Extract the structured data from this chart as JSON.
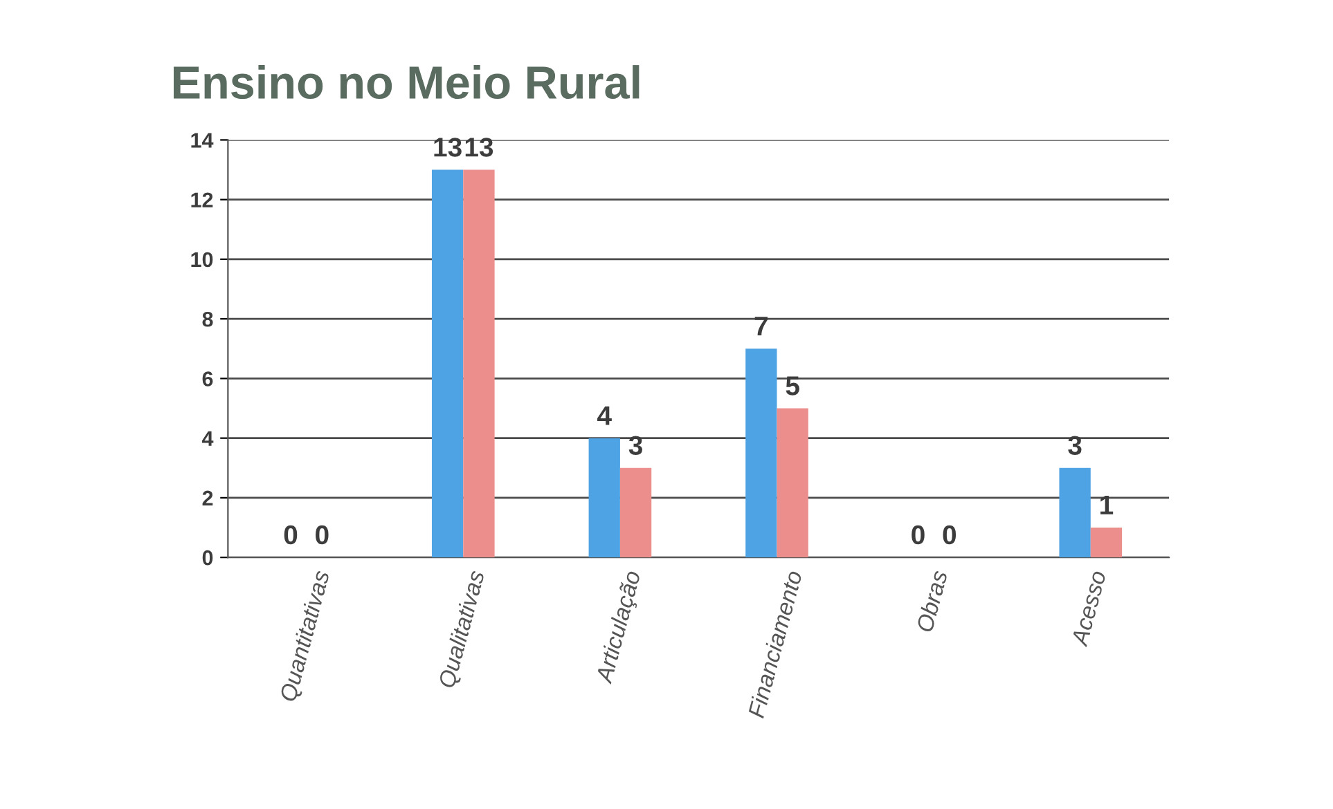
{
  "chart_data": {
    "type": "bar",
    "title": "Ensino no Meio Rural",
    "categories": [
      "Quantitativas",
      "Qualitativas",
      "Articulação",
      "Financiamento",
      "Obras",
      "Acesso"
    ],
    "series": [
      {
        "color": "#4ea3e4",
        "values": [
          0,
          13,
          4,
          7,
          0,
          3
        ]
      },
      {
        "color": "#ec8e8c",
        "values": [
          0,
          13,
          3,
          5,
          0,
          1
        ]
      }
    ],
    "ylim": [
      0,
      14
    ],
    "yticks": [
      0,
      2,
      4,
      6,
      8,
      10,
      12,
      14
    ],
    "grid": "y",
    "legend": false,
    "data_labels": true
  }
}
